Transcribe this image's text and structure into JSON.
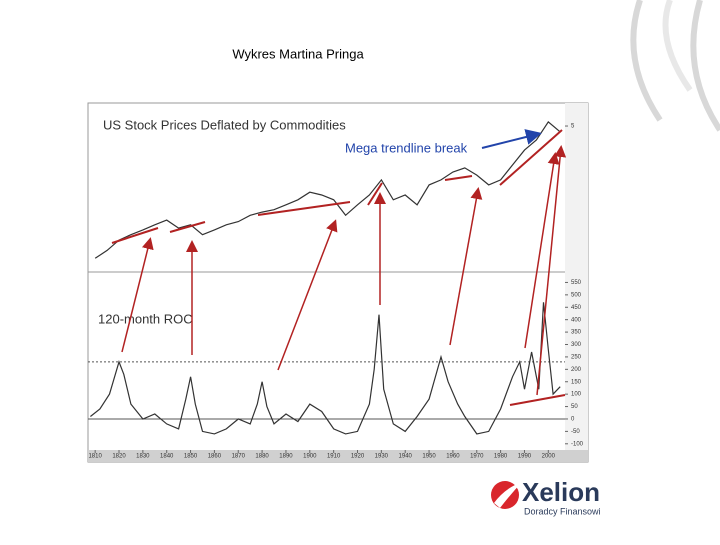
{
  "slide_title": "Wykres Martina Pringa",
  "logo": {
    "name": "Xelion",
    "tagline": "Doradcy Finansowi"
  },
  "chart_data": [
    {
      "type": "line",
      "title": "US Stock Prices Deflated by Commodities",
      "annotation": "Mega trendline break",
      "log_scale": true,
      "color": "#333333",
      "x": [
        1810,
        1815,
        1820,
        1825,
        1830,
        1835,
        1840,
        1845,
        1850,
        1855,
        1860,
        1865,
        1870,
        1875,
        1880,
        1885,
        1890,
        1895,
        1900,
        1905,
        1910,
        1915,
        1920,
        1925,
        1930,
        1935,
        1940,
        1945,
        1950,
        1955,
        1960,
        1965,
        1970,
        1975,
        1980,
        1985,
        1990,
        1995,
        2000,
        2005
      ],
      "values": [
        0.26,
        0.31,
        0.39,
        0.44,
        0.49,
        0.55,
        0.61,
        0.51,
        0.55,
        0.44,
        0.49,
        0.55,
        0.59,
        0.68,
        0.73,
        0.77,
        0.86,
        0.96,
        1.14,
        1.07,
        0.96,
        0.68,
        0.86,
        1.07,
        1.5,
        0.96,
        1.07,
        0.86,
        1.34,
        1.5,
        1.79,
        1.96,
        1.67,
        1.34,
        1.5,
        2.09,
        2.92,
        3.66,
        5.48,
        4.38
      ],
      "xlim": [
        1807,
        2007
      ],
      "ylim": [
        0.2,
        8
      ],
      "yticks": [
        5
      ]
    },
    {
      "type": "line",
      "title": "120-month ROC",
      "color": "#333333",
      "x": [
        1808,
        1812,
        1816,
        1820,
        1822,
        1825,
        1830,
        1835,
        1840,
        1845,
        1848,
        1850,
        1852,
        1855,
        1860,
        1865,
        1870,
        1875,
        1878,
        1880,
        1882,
        1885,
        1890,
        1895,
        1900,
        1905,
        1910,
        1915,
        1920,
        1925,
        1927,
        1929,
        1931,
        1935,
        1940,
        1945,
        1950,
        1955,
        1958,
        1962,
        1965,
        1970,
        1975,
        1980,
        1985,
        1988,
        1990,
        1993,
        1996,
        1998,
        2000,
        2002,
        2005
      ],
      "values": [
        10,
        40,
        100,
        230,
        180,
        60,
        0,
        20,
        -20,
        -40,
        80,
        170,
        60,
        -50,
        -60,
        -40,
        0,
        -20,
        60,
        150,
        50,
        -20,
        20,
        -10,
        60,
        30,
        -40,
        -60,
        -50,
        60,
        200,
        420,
        120,
        -20,
        -50,
        10,
        80,
        250,
        150,
        60,
        10,
        -60,
        -50,
        40,
        170,
        230,
        120,
        270,
        120,
        470,
        280,
        100,
        130
      ],
      "xlim": [
        1807,
        2007
      ],
      "ylim": [
        -125,
        580
      ],
      "yticks": [
        -100,
        -50,
        0,
        50,
        100,
        150,
        200,
        250,
        300,
        350,
        400,
        450,
        500,
        550
      ],
      "xticks": [
        1810,
        1820,
        1830,
        1840,
        1850,
        1860,
        1870,
        1880,
        1890,
        1900,
        1910,
        1920,
        1930,
        1940,
        1950,
        1960,
        1970,
        1980,
        1990,
        2000
      ],
      "hlines": [
        230,
        0
      ]
    }
  ]
}
